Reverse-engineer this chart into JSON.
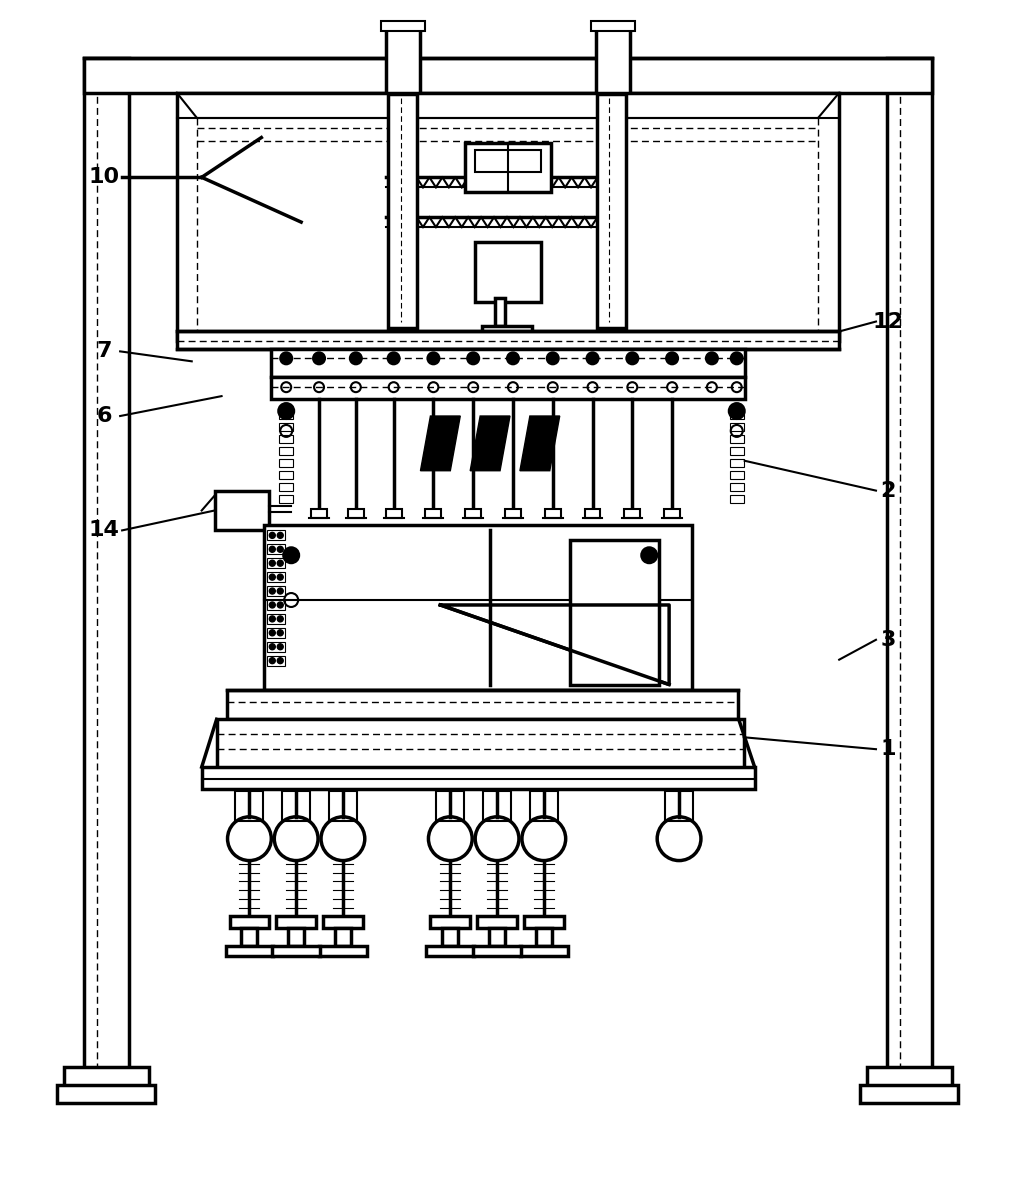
{
  "bg_color": "#ffffff",
  "line_color": "#000000",
  "fig_width": 10.16,
  "fig_height": 12.03,
  "label_fontsize": 16,
  "lw": 1.5,
  "lw2": 2.5,
  "lw3": 3.5
}
